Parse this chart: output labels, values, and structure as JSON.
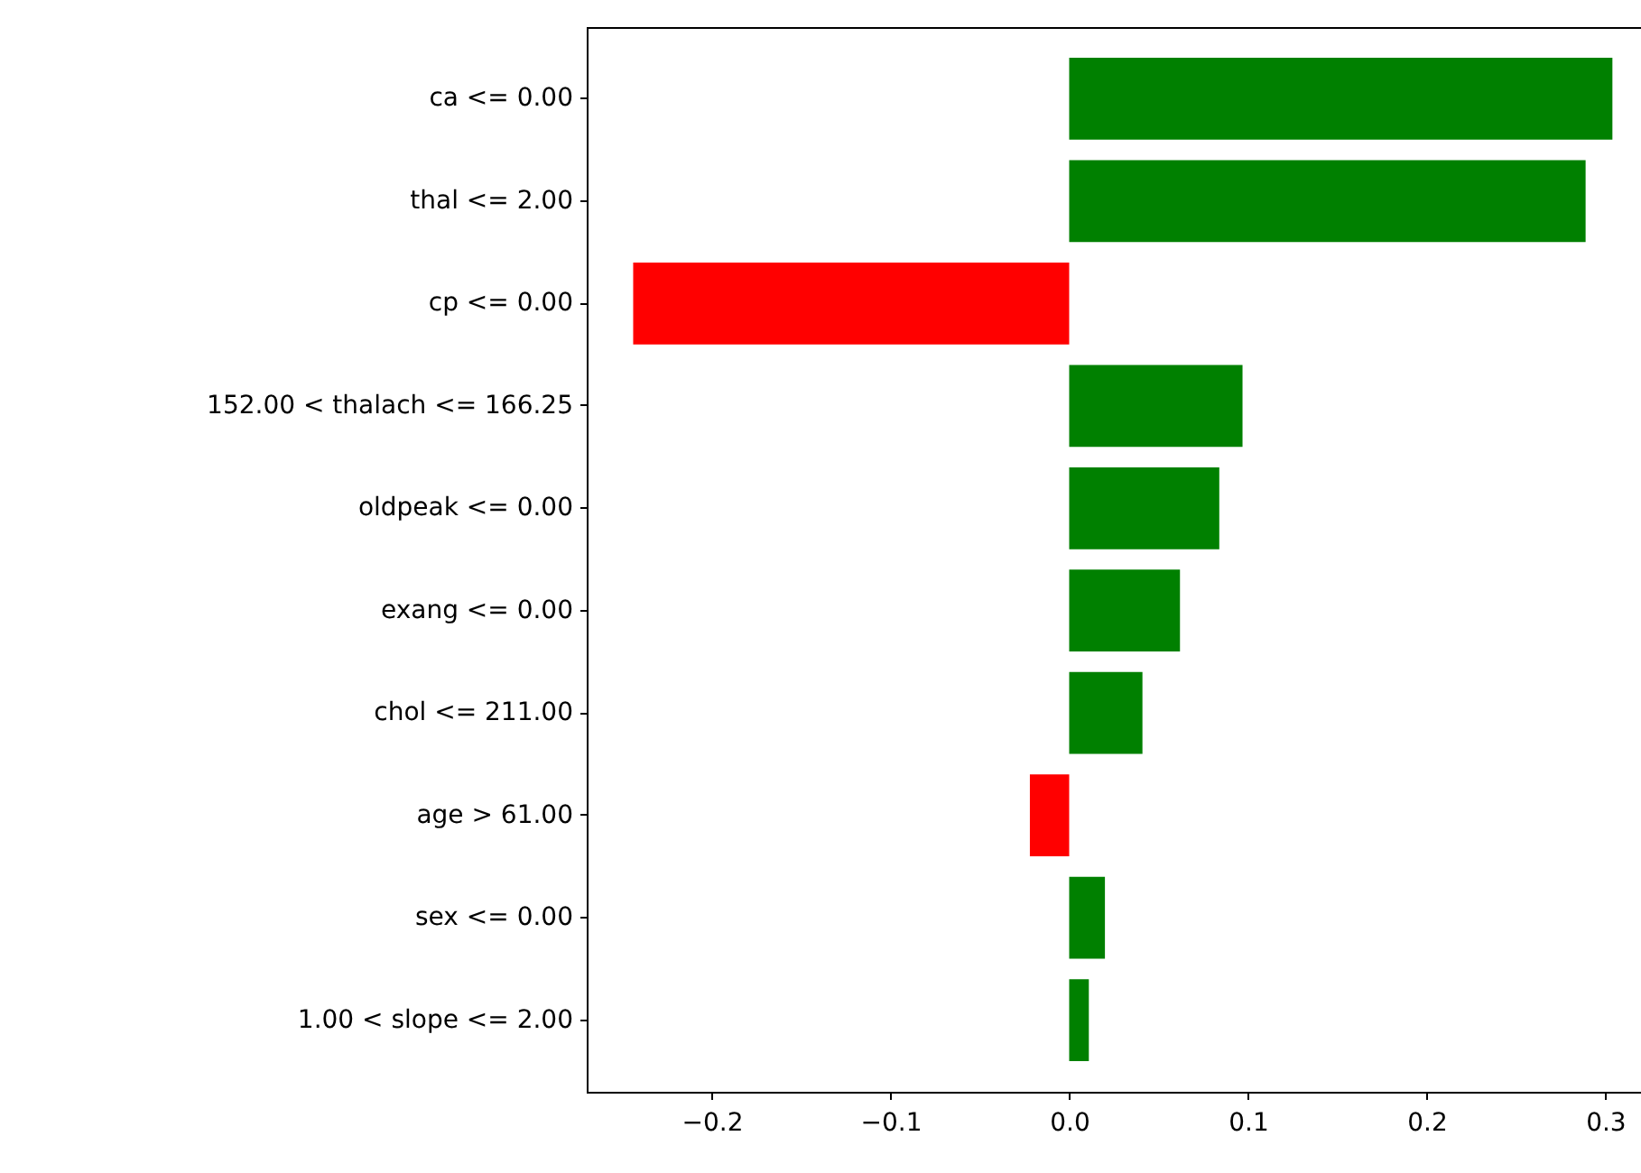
{
  "chart_data": {
    "type": "bar",
    "orientation": "horizontal",
    "categories": [
      "ca <= 0.00",
      "thal <= 2.00",
      "cp <= 0.00",
      "152.00 < thalach <= 166.25",
      "oldpeak <= 0.00",
      "exang <= 0.00",
      "chol <= 211.00",
      "age > 61.00",
      "sex <= 0.00",
      "1.00 < slope <= 2.00"
    ],
    "values": [
      0.304,
      0.289,
      -0.244,
      0.097,
      0.084,
      0.062,
      0.041,
      -0.022,
      0.02,
      0.011
    ],
    "colors": [
      "#008000",
      "#008000",
      "#ff0000",
      "#008000",
      "#008000",
      "#008000",
      "#008000",
      "#ff0000",
      "#008000",
      "#008000"
    ],
    "xlim": [
      -0.27,
      0.32
    ],
    "xticks": [
      {
        "value": -0.2,
        "label": "−0.2"
      },
      {
        "value": -0.1,
        "label": "−0.1"
      },
      {
        "value": 0,
        "label": "0.0"
      },
      {
        "value": 0.1,
        "label": "0.1"
      },
      {
        "value": 0.2,
        "label": "0.2"
      },
      {
        "value": 0.3,
        "label": "0.3"
      }
    ],
    "grid": false
  }
}
